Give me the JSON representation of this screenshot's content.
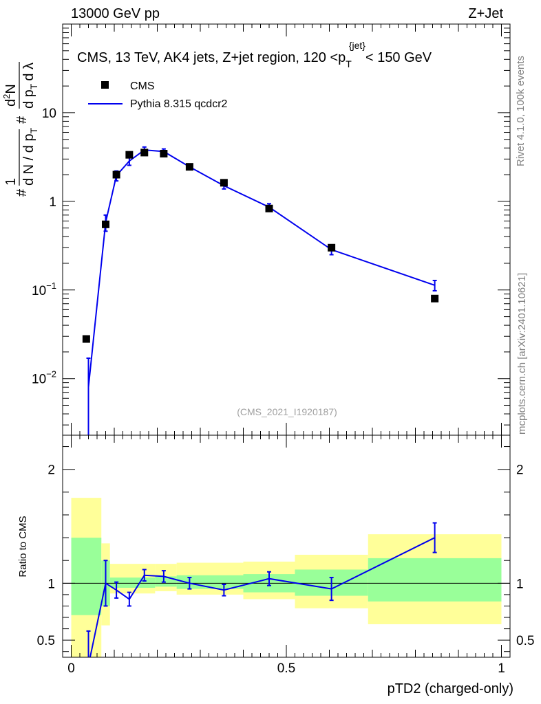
{
  "header": {
    "left": "13000 GeV pp",
    "right": "Z+Jet"
  },
  "side": {
    "top": "Rivet 4.1.0,  100k events",
    "bottom": "mcplots.cern.ch [arXiv:2401.10621]"
  },
  "colors": {
    "mc": "#0000ee",
    "data": "#000000",
    "band_outer": "#ffff99",
    "band_inner": "#99ff99"
  },
  "chart_data": [
    {
      "type": "scatter",
      "panel": "main",
      "title_parts": {
        "prefix": "CMS, 13 TeV, AK4 jets, Z+jet region, 120 <p",
        "sub": "T",
        "sup": "{jet}",
        "suffix": "< 150 GeV"
      },
      "watermark": "(CMS_2021_I1920187)",
      "ylabel_parts": {
        "num1": "1",
        "den1": "d N / d p",
        "den1_sub": "T",
        "hash": "#",
        "num2": "d",
        "num2_sup": "2",
        "num2_tail": "N",
        "den2": "d p",
        "den2_sub": "T",
        "den2_tail": "d λ"
      },
      "ylog": true,
      "ylim": [
        0.0023,
        100
      ],
      "xlim": [
        -0.02,
        1.02
      ],
      "yticks": [
        {
          "value": 0.01,
          "base": "10",
          "exp": "−2"
        },
        {
          "value": 0.1,
          "base": "10",
          "exp": "−1"
        },
        {
          "value": 1,
          "label": "1"
        },
        {
          "value": 10,
          "label": "10"
        }
      ],
      "legend": [
        {
          "name": "CMS",
          "kind": "marker"
        },
        {
          "name": "Pythia 8.315 qcdcr2",
          "kind": "line"
        }
      ],
      "data_x": [
        0.035,
        0.08,
        0.105,
        0.135,
        0.17,
        0.215,
        0.275,
        0.355,
        0.46,
        0.605,
        0.845
      ],
      "data_y": [
        0.028,
        0.55,
        2.0,
        3.35,
        3.55,
        3.45,
        2.45,
        1.62,
        0.83,
        0.3,
        0.08
      ],
      "mc_x": [
        0.04,
        0.08,
        0.105,
        0.135,
        0.17,
        0.215,
        0.275,
        0.355,
        0.46,
        0.605,
        0.845
      ],
      "mc_y": [
        0.008,
        0.58,
        1.95,
        2.85,
        3.8,
        3.65,
        2.45,
        1.5,
        0.86,
        0.285,
        0.113
      ],
      "mc_err_lo": [
        0.006,
        0.12,
        0.25,
        0.3,
        0.3,
        0.25,
        0.15,
        0.12,
        0.08,
        0.035,
        0.015
      ],
      "mc_err_hi": [
        0.009,
        0.12,
        0.25,
        0.3,
        0.3,
        0.25,
        0.15,
        0.12,
        0.08,
        0.035,
        0.015
      ]
    },
    {
      "type": "line",
      "panel": "ratio",
      "ylabel": "Ratio to CMS",
      "xlabel": "pTD2 (charged-only)",
      "ylim": [
        0.35,
        2.3
      ],
      "xlim": [
        -0.02,
        1.02
      ],
      "yticks": [
        0.5,
        1,
        2
      ],
      "ytick_labels": [
        "0.5",
        "1",
        "2"
      ],
      "xticks": [
        0,
        0.5,
        1
      ],
      "xtick_labels": [
        "0",
        "0.5",
        "1"
      ],
      "bands": [
        {
          "x0": 0.0,
          "x1": 0.07,
          "out_lo": 0.3,
          "out_hi": 1.75,
          "in_lo": 0.72,
          "in_hi": 1.4
        },
        {
          "x0": 0.07,
          "x1": 0.09,
          "out_lo": 0.63,
          "out_hi": 1.35,
          "in_lo": 0.8,
          "in_hi": 1.2
        },
        {
          "x0": 0.09,
          "x1": 0.195,
          "out_lo": 0.91,
          "out_hi": 1.17,
          "in_lo": 0.96,
          "in_hi": 1.05
        },
        {
          "x0": 0.195,
          "x1": 0.245,
          "out_lo": 0.93,
          "out_hi": 1.17,
          "in_lo": 0.97,
          "in_hi": 1.06
        },
        {
          "x0": 0.245,
          "x1": 0.4,
          "out_lo": 0.9,
          "out_hi": 1.18,
          "in_lo": 0.95,
          "in_hi": 1.07
        },
        {
          "x0": 0.4,
          "x1": 0.52,
          "out_lo": 0.86,
          "out_hi": 1.19,
          "in_lo": 0.92,
          "in_hi": 1.08
        },
        {
          "x0": 0.52,
          "x1": 0.69,
          "out_lo": 0.78,
          "out_hi": 1.25,
          "in_lo": 0.89,
          "in_hi": 1.12
        },
        {
          "x0": 0.69,
          "x1": 1.0,
          "out_lo": 0.64,
          "out_hi": 1.43,
          "in_lo": 0.84,
          "in_hi": 1.22
        }
      ],
      "mc_x": [
        0.04,
        0.08,
        0.105,
        0.135,
        0.17,
        0.215,
        0.275,
        0.355,
        0.46,
        0.605,
        0.845
      ],
      "mc_y": [
        0.28,
        1.0,
        0.94,
        0.86,
        1.07,
        1.06,
        1.0,
        0.94,
        1.04,
        0.95,
        1.4
      ],
      "mc_err": [
        0.3,
        0.2,
        0.07,
        0.06,
        0.05,
        0.05,
        0.05,
        0.05,
        0.06,
        0.1,
        0.13
      ]
    }
  ]
}
